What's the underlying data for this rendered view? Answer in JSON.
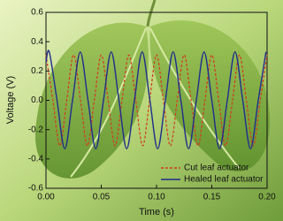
{
  "chart_data": {
    "type": "line",
    "xlabel": "Time (s)",
    "ylabel": "Voltage (V)",
    "xlim": [
      0,
      0.2
    ],
    "ylim": [
      -0.6,
      0.6
    ],
    "xticks": [
      {
        "value": 0,
        "label": "0.00"
      },
      0.05,
      {
        "value": 0.1,
        "label": "0.10"
      },
      0.15,
      {
        "value": 0.2,
        "label": "0.20"
      }
    ],
    "yticks": [
      -0.6,
      -0.4,
      -0.2,
      {
        "value": 0,
        "label": "0.0"
      },
      0.2,
      0.4,
      0.6
    ],
    "legend": "lower right",
    "series": [
      {
        "name": "Cut leaf actuator",
        "color": "#d23a1e",
        "style": "dashed",
        "x": [
          0,
          0.00625,
          0.0125,
          0.01875,
          0.025,
          0.03125,
          0.0375,
          0.04375,
          0.05,
          0.05625,
          0.0625,
          0.06875,
          0.075,
          0.08125,
          0.0875,
          0.09375,
          0.1,
          0.10625,
          0.1125,
          0.11875,
          0.125,
          0.13125,
          0.1375,
          0.14375,
          0.15,
          0.15625,
          0.1625,
          0.16875,
          0.175,
          0.18125,
          0.1875,
          0.19375,
          0.2
        ],
        "values": [
          0.31,
          0,
          -0.31,
          0,
          0.31,
          0,
          -0.31,
          0,
          0.31,
          0,
          -0.31,
          0,
          0.31,
          0,
          -0.31,
          0,
          0.31,
          0,
          -0.31,
          0,
          0.31,
          0,
          -0.31,
          0,
          0.31,
          0,
          -0.31,
          0,
          0.31,
          0,
          -0.31,
          0,
          0.31
        ]
      },
      {
        "name": "Healed leaf actuator",
        "color": "#1f2d8c",
        "style": "solid",
        "x": [
          0,
          0.003,
          0.01,
          0.017,
          0.024,
          0.031,
          0.038,
          0.045,
          0.052,
          0.059,
          0.066,
          0.073,
          0.08,
          0.087,
          0.094,
          0.101,
          0.108,
          0.115,
          0.122,
          0.129,
          0.136,
          0.143,
          0.15,
          0.157,
          0.164,
          0.171,
          0.178,
          0.185,
          0.192,
          0.199
        ],
        "values": [
          0.26,
          0.33,
          0,
          -0.33,
          0,
          0.33,
          0,
          -0.33,
          0,
          0.33,
          0,
          -0.33,
          0,
          0.33,
          0,
          -0.33,
          0,
          0.33,
          0,
          -0.33,
          0,
          0.33,
          0,
          -0.33,
          0,
          0.33,
          0,
          -0.33,
          0,
          0.33
        ]
      }
    ]
  }
}
